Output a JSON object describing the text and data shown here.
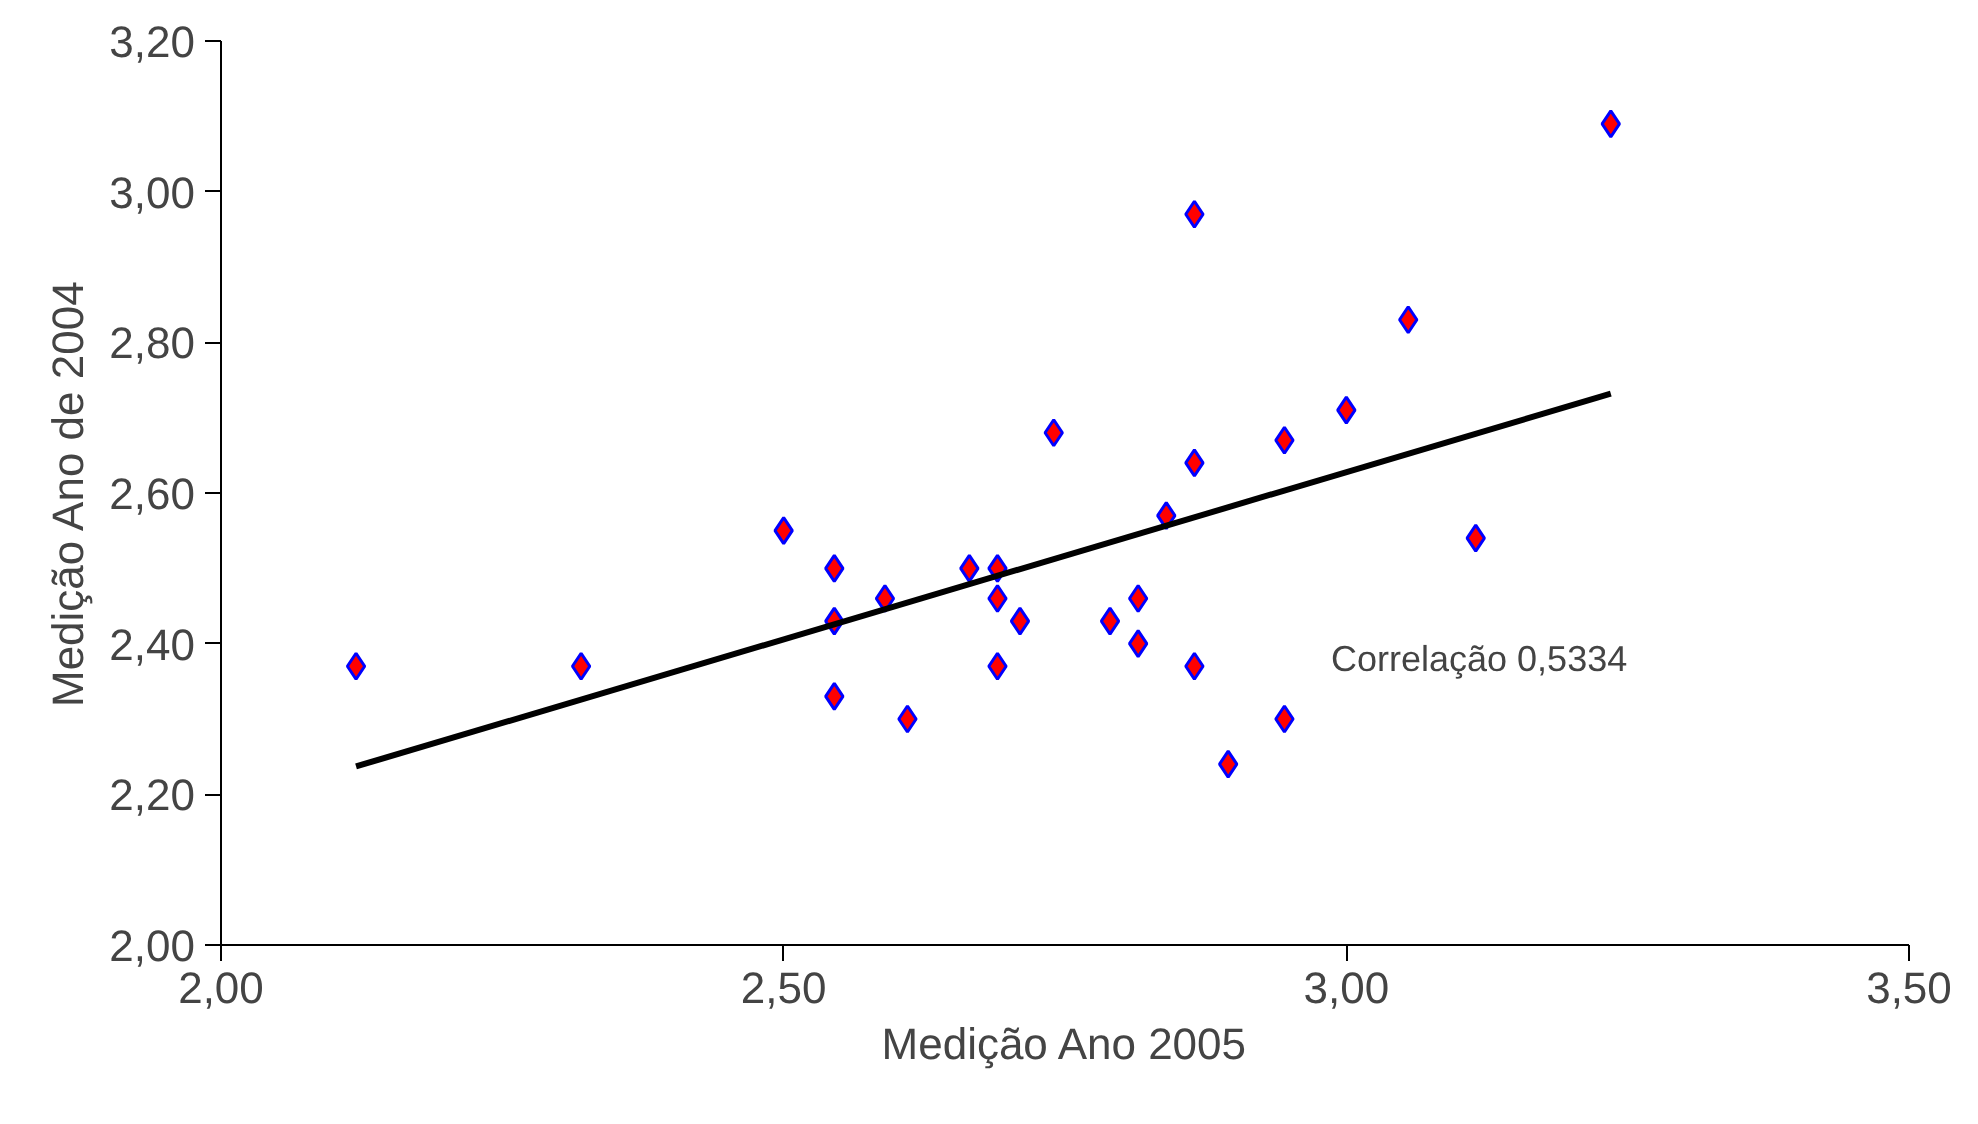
{
  "chart_data": {
    "type": "scatter",
    "xlabel": "Medição Ano 2005",
    "ylabel": "Medição Ano de 2004",
    "xlim": [
      2.0,
      3.5
    ],
    "ylim": [
      2.0,
      3.2
    ],
    "xticks": [
      {
        "value": 2.0,
        "label": "2,00"
      },
      {
        "value": 2.5,
        "label": "2,50"
      },
      {
        "value": 3.0,
        "label": "3,00"
      },
      {
        "value": 3.5,
        "label": "3,50"
      }
    ],
    "yticks": [
      {
        "value": 2.0,
        "label": "2,00"
      },
      {
        "value": 2.2,
        "label": "2,20"
      },
      {
        "value": 2.4,
        "label": "2,40"
      },
      {
        "value": 2.6,
        "label": "2,60"
      },
      {
        "value": 2.8,
        "label": "2,80"
      },
      {
        "value": 3.0,
        "label": "3,00"
      },
      {
        "value": 3.2,
        "label": "3,20"
      }
    ],
    "grid": false,
    "marker": "diamond",
    "annotations": [
      "Correlação 0,5334"
    ],
    "series": [
      {
        "color": "#ff0000",
        "x": [
          2.12,
          2.32,
          2.5,
          2.545,
          2.545,
          2.545,
          2.59,
          2.61,
          2.665,
          2.69,
          2.69,
          2.69,
          2.71,
          2.74,
          2.79,
          2.815,
          2.815,
          2.84,
          2.865,
          2.865,
          2.865,
          2.895,
          2.945,
          2.945,
          3.0,
          3.055,
          3.115,
          3.235
        ],
        "values": [
          2.37,
          2.37,
          2.55,
          2.5,
          2.43,
          2.33,
          2.46,
          2.3,
          2.5,
          2.5,
          2.46,
          2.37,
          2.43,
          2.68,
          2.43,
          2.46,
          2.4,
          2.57,
          2.97,
          2.64,
          2.37,
          2.24,
          2.3,
          2.67,
          2.71,
          2.83,
          2.54,
          3.09
        ]
      },
      {
        "type": "line",
        "color": "#000000",
        "marker": "none",
        "x": [
          2.12,
          3.235
        ],
        "values": [
          2.237,
          2.732
        ]
      }
    ]
  }
}
